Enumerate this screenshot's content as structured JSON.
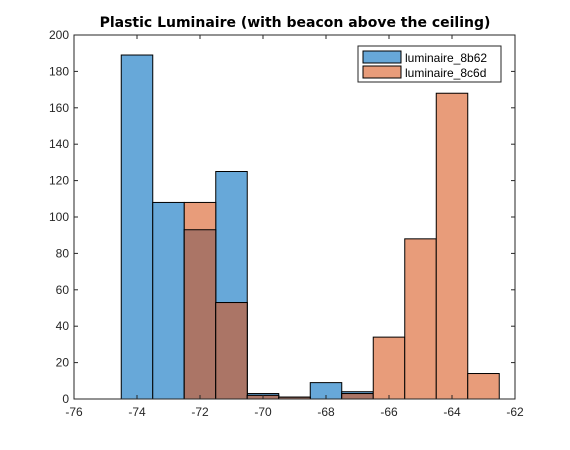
{
  "chart_data": {
    "type": "histogram",
    "title": "Plastic Luminaire (with beacon above the ceiling)",
    "xlabel": "",
    "ylabel": "",
    "xlim": [
      -76,
      -62
    ],
    "ylim": [
      0,
      200
    ],
    "xticks": [
      -76,
      -74,
      -72,
      -70,
      -68,
      -66,
      -64,
      -62
    ],
    "yticks": [
      0,
      20,
      40,
      60,
      80,
      100,
      120,
      140,
      160,
      180,
      200
    ],
    "bin_width": 1,
    "legend_position": "top-right",
    "overlap_color": "#AB7566",
    "series": [
      {
        "name": "luminaire_8b62",
        "color": "#67A8D9",
        "bins": [
          {
            "x0": -74.5,
            "x1": -73.5,
            "count": 189
          },
          {
            "x0": -73.5,
            "x1": -72.5,
            "count": 108
          },
          {
            "x0": -72.5,
            "x1": -71.5,
            "count": 93
          },
          {
            "x0": -71.5,
            "x1": -70.5,
            "count": 125
          },
          {
            "x0": -70.5,
            "x1": -69.5,
            "count": 3
          },
          {
            "x0": -69.5,
            "x1": -68.5,
            "count": 1
          },
          {
            "x0": -68.5,
            "x1": -67.5,
            "count": 9
          },
          {
            "x0": -67.5,
            "x1": -66.5,
            "count": 4
          }
        ]
      },
      {
        "name": "luminaire_8c6d",
        "color": "#E89C7A",
        "bins": [
          {
            "x0": -72.5,
            "x1": -71.5,
            "count": 108
          },
          {
            "x0": -71.5,
            "x1": -70.5,
            "count": 53
          },
          {
            "x0": -70.5,
            "x1": -69.5,
            "count": 2
          },
          {
            "x0": -69.5,
            "x1": -68.5,
            "count": 1
          },
          {
            "x0": -68.5,
            "x1": -67.5,
            "count": 0
          },
          {
            "x0": -67.5,
            "x1": -66.5,
            "count": 3
          },
          {
            "x0": -66.5,
            "x1": -65.5,
            "count": 34
          },
          {
            "x0": -65.5,
            "x1": -64.5,
            "count": 88
          },
          {
            "x0": -64.5,
            "x1": -63.5,
            "count": 168
          },
          {
            "x0": -63.5,
            "x1": -62.5,
            "count": 14
          }
        ]
      }
    ]
  }
}
